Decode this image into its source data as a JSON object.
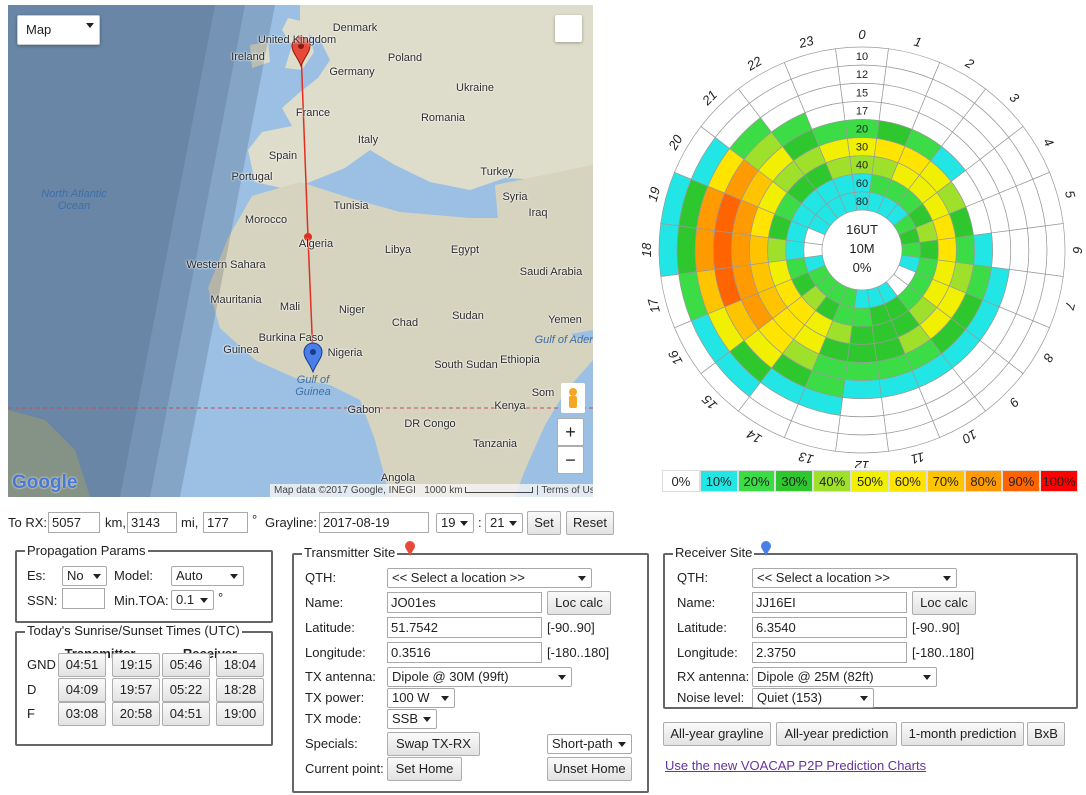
{
  "map": {
    "type_control": "Map",
    "labels": [
      "Denmark",
      "Ireland",
      "United Kingdom",
      "Poland",
      "Germany",
      "Ukraine",
      "France",
      "Romania",
      "Italy",
      "Spain",
      "Turkey",
      "Portugal",
      "Tunisia",
      "Syria",
      "Iraq",
      "Morocco",
      "Algeria",
      "Libya",
      "Egypt",
      "Saudi Arabia",
      "Western Sahara",
      "Mauritania",
      "Mali",
      "Niger",
      "Chad",
      "Sudan",
      "Yemen",
      "Burkina Faso",
      "Guinea",
      "Nigeria",
      "South Sudan",
      "Ethiopia",
      "Gabon",
      "Kenya",
      "DR Congo",
      "Tanzania",
      "Angola",
      "Som"
    ],
    "sea_labels": [
      "North Atlantic Ocean",
      "Gulf of Guinea",
      "Gulf of Aden"
    ],
    "logo": "Google",
    "attribution": "Map data ©2017 Google, INEGI",
    "scale": "1000 km",
    "terms": "Terms of Use",
    "zoom_in": "+",
    "zoom_out": "−"
  },
  "polar_chart": {
    "type": "polar-heatmap",
    "center_labels": [
      "16UT",
      "10M",
      "0%"
    ],
    "hours": [
      0,
      1,
      2,
      3,
      4,
      5,
      6,
      7,
      8,
      9,
      10,
      11,
      12,
      13,
      14,
      15,
      16,
      17,
      18,
      19,
      20,
      21,
      22,
      23
    ],
    "rings": [
      10,
      12,
      15,
      17,
      20,
      30,
      40,
      60,
      80
    ],
    "values": [
      [
        0,
        0,
        0,
        0,
        0,
        0,
        0,
        0,
        0,
        0,
        0,
        0,
        0,
        0,
        0,
        0,
        0,
        0,
        10,
        10,
        0,
        0,
        0,
        0
      ],
      [
        0,
        0,
        0,
        0,
        0,
        0,
        0,
        0,
        0,
        0,
        0,
        0,
        0,
        0,
        0,
        10,
        10,
        20,
        30,
        30,
        10,
        0,
        0,
        0
      ],
      [
        0,
        0,
        0,
        0,
        0,
        0,
        0,
        0,
        0,
        0,
        0,
        0,
        0,
        10,
        10,
        30,
        50,
        70,
        80,
        80,
        60,
        20,
        0,
        0
      ],
      [
        0,
        0,
        0,
        0,
        0,
        0,
        0,
        10,
        10,
        10,
        10,
        10,
        10,
        20,
        30,
        50,
        70,
        90,
        90,
        90,
        80,
        40,
        20,
        0
      ],
      [
        20,
        30,
        20,
        10,
        0,
        0,
        10,
        20,
        30,
        30,
        20,
        20,
        20,
        20,
        40,
        60,
        80,
        80,
        80,
        80,
        70,
        50,
        30,
        20
      ],
      [
        50,
        60,
        60,
        50,
        40,
        30,
        20,
        40,
        50,
        50,
        40,
        30,
        30,
        30,
        50,
        60,
        70,
        70,
        70,
        60,
        50,
        40,
        40,
        50
      ],
      [
        40,
        40,
        50,
        50,
        50,
        60,
        60,
        50,
        50,
        40,
        30,
        30,
        30,
        40,
        50,
        60,
        60,
        50,
        40,
        30,
        20,
        30,
        30,
        40
      ],
      [
        10,
        20,
        20,
        20,
        30,
        40,
        30,
        20,
        20,
        20,
        30,
        30,
        20,
        20,
        30,
        40,
        30,
        20,
        10,
        10,
        10,
        10,
        10,
        10
      ],
      [
        10,
        10,
        10,
        10,
        20,
        30,
        20,
        10,
        0,
        0,
        10,
        10,
        10,
        20,
        20,
        20,
        20,
        10,
        0,
        0,
        10,
        10,
        10,
        10
      ]
    ],
    "legend": [
      {
        "value": 0,
        "label": "0%",
        "color": "#ffffff"
      },
      {
        "value": 10,
        "label": "10%",
        "color": "#22e6e6"
      },
      {
        "value": 20,
        "label": "20%",
        "color": "#3cdc46"
      },
      {
        "value": 30,
        "label": "30%",
        "color": "#2ec82e"
      },
      {
        "value": 40,
        "label": "40%",
        "color": "#9ee02a"
      },
      {
        "value": 50,
        "label": "50%",
        "color": "#f0f000"
      },
      {
        "value": 60,
        "label": "60%",
        "color": "#ffe400"
      },
      {
        "value": 70,
        "label": "70%",
        "color": "#ffc400"
      },
      {
        "value": 80,
        "label": "80%",
        "color": "#ff9a00"
      },
      {
        "value": 90,
        "label": "90%",
        "color": "#ff6400"
      },
      {
        "value": 100,
        "label": "100%",
        "color": "#ff0000"
      }
    ]
  },
  "route": {
    "to_rx": "To RX:",
    "km": "5057",
    "km_unit": "km,",
    "mi": "3143",
    "mi_unit": "mi,",
    "azimuth": "177",
    "deg": "°",
    "grayline": "Grayline:",
    "date": "2017-08-19",
    "hour": "19",
    "sep": ":",
    "minute": "21",
    "set": "Set",
    "reset": "Reset"
  },
  "propagation": {
    "title": "Propagation Params",
    "es_label": "Es:",
    "es": "No",
    "model_label": "Model:",
    "model": "Auto",
    "ssn_label": "SSN:",
    "toa_label": "Min.TOA:",
    "toa": "0.1",
    "toa_unit": "°"
  },
  "sun_times": {
    "title": "Today's Sunrise/Sunset Times (UTC)",
    "headers": [
      "Transmitter",
      "Receiver"
    ],
    "rows": [
      {
        "label": "GND",
        "times": [
          "04:51",
          "19:15",
          "05:46",
          "18:04"
        ]
      },
      {
        "label": "D",
        "times": [
          "04:09",
          "19:57",
          "05:22",
          "18:28"
        ]
      },
      {
        "label": "F",
        "times": [
          "03:08",
          "20:58",
          "04:51",
          "19:00"
        ]
      }
    ]
  },
  "transmitter": {
    "title": "Transmitter Site",
    "qth_label": "QTH:",
    "qth": "<< Select a location >>",
    "name_label": "Name:",
    "name": "JO01es",
    "loc_calc": "Loc calc",
    "lat_label": "Latitude:",
    "lat": "51.7542",
    "lat_range": "[-90..90]",
    "lon_label": "Longitude:",
    "lon": "0.3516",
    "lon_range": "[-180..180]",
    "antenna_label": "TX antenna:",
    "antenna": "Dipole @ 30M (99ft)",
    "power_label": "TX power:",
    "power": "100 W",
    "mode_label": "TX mode:",
    "mode": "SSB",
    "specials_label": "Specials:",
    "swap": "Swap TX-RX",
    "path": "Short-path",
    "point_label": "Current point:",
    "set_home": "Set Home",
    "unset_home": "Unset Home"
  },
  "receiver": {
    "title": "Receiver Site",
    "qth_label": "QTH:",
    "qth": "<< Select a location >>",
    "name_label": "Name:",
    "name": "JJ16EI",
    "loc_calc": "Loc calc",
    "lat_label": "Latitude:",
    "lat": "6.3540",
    "lat_range": "[-90..90]",
    "lon_label": "Longitude:",
    "lon": "2.3750",
    "lon_range": "[-180..180]",
    "antenna_label": "RX antenna:",
    "antenna": "Dipole @ 25M (82ft)",
    "noise_label": "Noise level:",
    "noise": "Quiet (153)"
  },
  "actions": [
    "All-year grayline",
    "All-year prediction",
    "1-month prediction",
    "BxB"
  ],
  "links": {
    "new_charts": "Use the new VOACAP P2P Prediction Charts"
  }
}
